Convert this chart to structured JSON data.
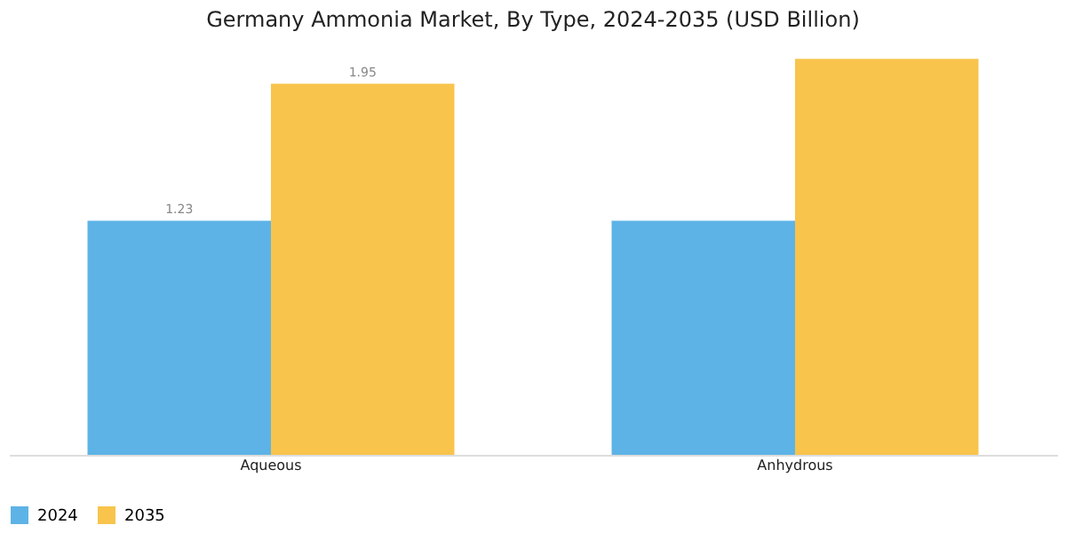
{
  "chart_data": {
    "type": "bar",
    "title": "Germany Ammonia Market, By Type, 2024-2035 (USD Billion)",
    "categories": [
      "Aqueous",
      "Anhydrous"
    ],
    "series": [
      {
        "name": "2024",
        "color": "#5db3e6",
        "values": [
          1.23,
          1.23
        ],
        "value_labels": [
          "1.23",
          null
        ]
      },
      {
        "name": "2035",
        "color": "#f8c44c",
        "values": [
          1.95,
          2.08
        ],
        "value_labels": [
          "1.95",
          null
        ]
      }
    ],
    "legend": "bottom",
    "grid": false
  }
}
